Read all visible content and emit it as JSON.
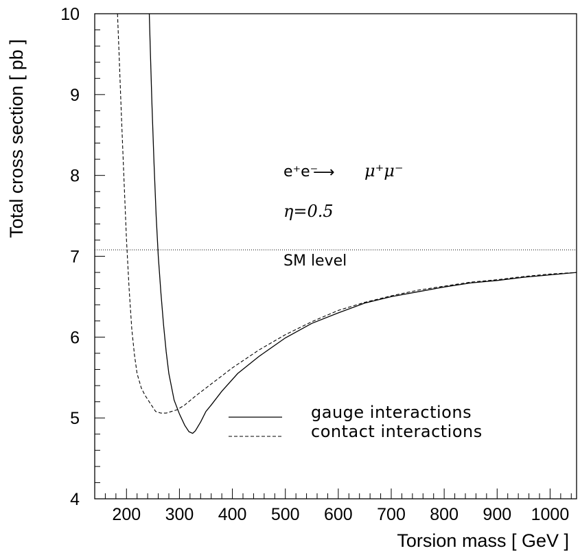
{
  "chart_data": {
    "type": "line",
    "xlabel": "Torsion mass [ GeV ]",
    "ylabel": "Total cross section [ pb ]",
    "xlim": [
      140,
      1050
    ],
    "ylim": [
      4,
      10
    ],
    "x_ticks": [
      200,
      300,
      400,
      500,
      600,
      700,
      800,
      900,
      1000
    ],
    "y_ticks": [
      4,
      5,
      6,
      7,
      8,
      9,
      10
    ],
    "grid": false,
    "legend_position": "center-right",
    "reference_line": {
      "y": 7.08,
      "label": "SM level",
      "style": "dotted"
    },
    "annotations": {
      "process_lhs": "e⁺e⁻",
      "process_arrow": "⟶",
      "process_rhs": "μ⁺μ⁻",
      "eta": "η=0.5",
      "sm_label": "SM level"
    },
    "series": [
      {
        "name": "gauge interactions",
        "style": "solid",
        "x": [
          243,
          245,
          248,
          252,
          256,
          260,
          265,
          270,
          275,
          280,
          290,
          300,
          310,
          318,
          325,
          330,
          340,
          350,
          360,
          380,
          410,
          450,
          500,
          550,
          600,
          650,
          700,
          750,
          800,
          850,
          900,
          950,
          1000,
          1050
        ],
        "y": [
          10.0,
          9.55,
          8.9,
          8.15,
          7.5,
          7.0,
          6.55,
          6.15,
          5.82,
          5.55,
          5.22,
          5.05,
          4.91,
          4.83,
          4.81,
          4.84,
          4.95,
          5.08,
          5.16,
          5.33,
          5.55,
          5.76,
          5.99,
          6.17,
          6.3,
          6.42,
          6.5,
          6.56,
          6.62,
          6.67,
          6.7,
          6.74,
          6.77,
          6.8
        ]
      },
      {
        "name": "contact interactions",
        "style": "dashed",
        "x": [
          183,
          186,
          190,
          195,
          200,
          205,
          210,
          215,
          220,
          228,
          235,
          245,
          255,
          265,
          275,
          285,
          295,
          310,
          330,
          360,
          400,
          450,
          500,
          550,
          600,
          650,
          700,
          750,
          800,
          850,
          900,
          950,
          1000,
          1050
        ],
        "y": [
          10.0,
          9.5,
          8.8,
          8.0,
          7.2,
          6.6,
          6.1,
          5.78,
          5.55,
          5.37,
          5.28,
          5.18,
          5.08,
          5.06,
          5.06,
          5.08,
          5.1,
          5.16,
          5.27,
          5.42,
          5.62,
          5.84,
          6.03,
          6.19,
          6.33,
          6.43,
          6.51,
          6.58,
          6.63,
          6.68,
          6.71,
          6.75,
          6.78,
          6.8
        ]
      }
    ]
  }
}
